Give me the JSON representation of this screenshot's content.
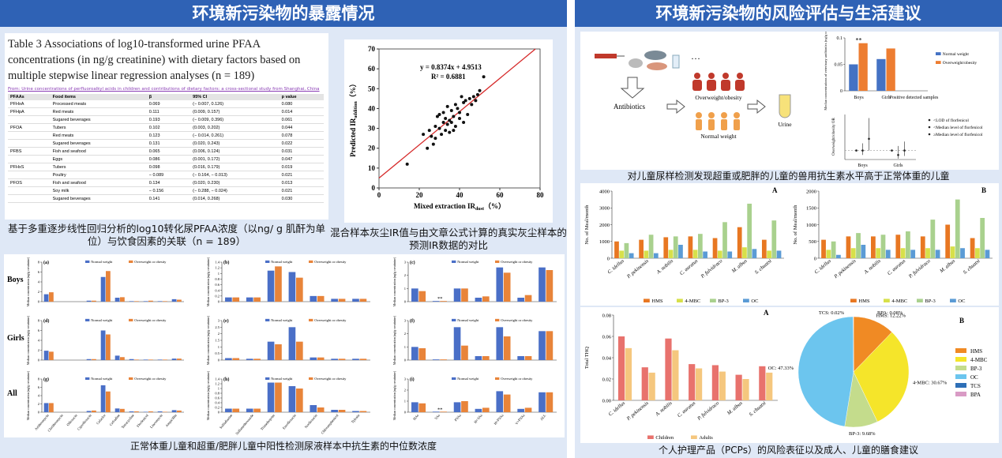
{
  "left_title": "环境新污染物的暴露情况",
  "right_title": "环境新污染物的风险评估与生活建议",
  "table": {
    "caption": "Table 3 Associations of log10-transformed urine PFAA concentrations (in ng/g creatinine) with dietary factors based on multiple stepwise linear regression analyses (n = 189)",
    "source": "From: Urine concentrations of perfluoroalkyl acids in children and contributions of dietary factors: a cross-sectional study from Shanghai, China",
    "header": [
      "PFAAs",
      "Food items",
      "β",
      "95% CI",
      "p value"
    ],
    "rows": [
      [
        "PFHxA",
        "Processed meats",
        "0.069",
        "(− 0.007, 0.126)",
        "0.080"
      ],
      [
        "PFHpA",
        "Red meats",
        "0.111",
        "(0.009, 0.157)",
        "0.014"
      ],
      [
        null,
        "Sugared beverages",
        "0.193",
        "(− 0.009, 0.396)",
        "0.061"
      ],
      [
        "PFOA",
        "Tubers",
        "0.102",
        "(0.003, 0.202)",
        "0.044"
      ],
      [
        null,
        "Red meats",
        "0.123",
        "(− 0.014, 0.261)",
        "0.078"
      ],
      [
        null,
        "Sugared beverages",
        "0.131",
        "(0.020, 0.243)",
        "0.022"
      ],
      [
        "PFBS",
        "Fish and seafood",
        "0.065",
        "(0.006, 0.124)",
        "0.031"
      ],
      [
        null,
        "Eggs",
        "0.086",
        "(0.001, 0.172)",
        "0.047"
      ],
      [
        "PFHxS",
        "Tubers",
        "0.098",
        "(0.016, 0.179)",
        "0.019"
      ],
      [
        null,
        "Poultry",
        "− 0.089",
        "(− 0.164, − 0.013)",
        "0.021"
      ],
      [
        "PFOS",
        "Fish and seafood",
        "0.134",
        "(0.020, 0.230)",
        "0.013"
      ],
      [
        null,
        "Soy milk",
        "− 0.156",
        "(− 0.288, − 0.024)",
        "0.021"
      ],
      [
        null,
        "Sugared beverages",
        "0.141",
        "(0.014, 0.268)",
        "0.030"
      ]
    ]
  },
  "table_caption": "基于多重逐步线性回归分析的log10转化尿PFAA浓度（以ng/ g 肌酐为单位）与饮食因素的关联（n = 189）",
  "scatter_caption": "混合样本灰尘IR值与由文章公式计算的真实灰尘样本的预测IR数据的对比",
  "grid_caption": "正常体重儿童和超重/肥胖儿童中阳性检测尿液样本中抗生素的中位数浓度",
  "diagram": {
    "antibiotics": "Antibiotics",
    "overweight": "Overweight/obesity",
    "normal": "Normal weight",
    "urine": "Urine",
    "more": "···"
  },
  "top_caption": "对儿童尿样检测发现超重或肥胖的儿童的兽用抗生素水平高于正常体重的儿童",
  "bottom_caption": "个人护理产品（PCPs）的风险表征以及成人、儿童的膳食建议",
  "chart_data": [
    {
      "type": "scatter",
      "equation": "y = 0.8374x + 4.9513",
      "r2": "R² = 0.6881",
      "slope": 0.8374,
      "intercept": 4.9513,
      "x_label": [
        "Mixed extraction IR",
        "dust",
        "（%）"
      ],
      "y_label": [
        "Predicted IR",
        "addition",
        "（%）"
      ],
      "color": "#111111",
      "line_color": "#d62a2a",
      "x": [
        14,
        22,
        24,
        25,
        26,
        27,
        28,
        28,
        29,
        30,
        30,
        31,
        32,
        32,
        33,
        33,
        34,
        34,
        35,
        35,
        36,
        36,
        37,
        37,
        38,
        38,
        39,
        40,
        40,
        41,
        42,
        42,
        43,
        44,
        45,
        46,
        47,
        48,
        49,
        50,
        52
      ],
      "y": [
        12,
        27,
        20,
        29,
        26,
        22,
        31,
        25,
        36,
        30,
        37,
        27,
        33,
        38,
        35,
        29,
        32,
        41,
        28,
        34,
        33,
        39,
        36,
        29,
        42,
        31,
        40,
        35,
        38,
        46,
        33,
        43,
        44,
        37,
        45,
        42,
        46,
        44,
        47,
        49,
        56
      ],
      "xlim": [
        0,
        80
      ],
      "xticks": [
        0,
        20,
        40,
        60,
        80
      ],
      "ylim": [
        0,
        70
      ],
      "yticks": [
        0,
        10,
        20,
        30,
        40,
        50,
        60,
        70
      ]
    },
    {
      "type": "bar",
      "label": "(a)",
      "row_label": "Boys",
      "y_label": "Median concentration (ng/g creatinine)",
      "ylim": [
        0,
        8
      ],
      "yticks": [
        0,
        2,
        4,
        6,
        8
      ],
      "series": [
        {
          "name": "Normal weight",
          "color": "#4a6fc7",
          "values": [
            1.5,
            0,
            0,
            0.2,
            5,
            0.8,
            0.1,
            0.1,
            0.1,
            0.5
          ]
        },
        {
          "name": "Overweight or obesity",
          "color": "#e8843a",
          "values": [
            1.9,
            0,
            0,
            0.2,
            6.2,
            0.9,
            0.1,
            0.2,
            0.1,
            0.4
          ]
        }
      ]
    },
    {
      "type": "bar",
      "label": "(b)",
      "y_label": "Median concentration (ng/g creatinine)",
      "ylim": [
        0,
        1.4
      ],
      "yticks": [
        0,
        0.2,
        0.4,
        0.6,
        0.8,
        1,
        1.2,
        1.4
      ],
      "series": [
        {
          "name": "Normal weight",
          "color": "#4a6fc7",
          "values": [
            0.15,
            0.15,
            1.1,
            1.05,
            0.2,
            0.1,
            0.1
          ]
        },
        {
          "name": "Overweight or obesity",
          "color": "#e8843a",
          "values": [
            0.15,
            0.15,
            1.25,
            0.85,
            0.2,
            0.1,
            0.1
          ]
        }
      ]
    },
    {
      "type": "bar",
      "label": "(c)",
      "y_label": "Median concentration (ng/g creatinine)",
      "ylim": [
        0,
        3
      ],
      "yticks": [
        0,
        1,
        2,
        3
      ],
      "annotation": "**",
      "series": [
        {
          "name": "Normal weight",
          "color": "#4a6fc7",
          "values": [
            1.0,
            0.05,
            1.0,
            0.3,
            2.6,
            0.3,
            2.6
          ]
        },
        {
          "name": "Overweight or obesity",
          "color": "#e8843a",
          "values": [
            0.8,
            0.05,
            1.0,
            0.4,
            2.2,
            0.5,
            2.4
          ]
        }
      ]
    },
    {
      "type": "bar",
      "label": "(d)",
      "row_label": "Girls",
      "y_label": "Median concentration (ng/g creatinine)",
      "ylim": [
        0,
        8
      ],
      "yticks": [
        0,
        2,
        4,
        6,
        8
      ],
      "series": [
        {
          "name": "Normal weight",
          "color": "#4a6fc7",
          "values": [
            1.9,
            0,
            0,
            0.2,
            6,
            0.9,
            0.2,
            0.1,
            0.1,
            0.3
          ]
        },
        {
          "name": "Overweight or obesity",
          "color": "#e8843a",
          "values": [
            1.7,
            0,
            0,
            0.2,
            5.2,
            0.6,
            0.1,
            0.1,
            0.1,
            0.3
          ]
        }
      ]
    },
    {
      "type": "bar",
      "label": "(e)",
      "y_label": "Median concentration (ng/g creatinine)",
      "ylim": [
        0,
        3
      ],
      "yticks": [
        0,
        0.5,
        1,
        1.5,
        2,
        2.5,
        3
      ],
      "series": [
        {
          "name": "Normal weight",
          "color": "#4a6fc7",
          "values": [
            0.15,
            0.1,
            1.4,
            2.5,
            0.2,
            0.1,
            0.1
          ]
        },
        {
          "name": "Overweight or obesity",
          "color": "#e8843a",
          "values": [
            0.15,
            0.1,
            1.2,
            1.4,
            0.2,
            0.1,
            0.1
          ]
        }
      ]
    },
    {
      "type": "bar",
      "label": "(f)",
      "y_label": "Median concentration (ng/g creatinine)",
      "ylim": [
        0,
        3
      ],
      "yticks": [
        0,
        1,
        2,
        3
      ],
      "series": [
        {
          "name": "Normal weight",
          "color": "#4a6fc7",
          "values": [
            1.0,
            0.05,
            2.5,
            0.3,
            2.5,
            0.3,
            2.2
          ]
        },
        {
          "name": "Overweight or obesity",
          "color": "#e8843a",
          "values": [
            0.9,
            0.05,
            1.1,
            0.3,
            1.8,
            0.3,
            2.2
          ]
        }
      ]
    },
    {
      "type": "bar",
      "label": "(g)",
      "row_label": "All",
      "y_label": "Median concentration (ng/g creatinine)",
      "ylim": [
        0,
        8
      ],
      "yticks": [
        0,
        2,
        4,
        6,
        8
      ],
      "categories": [
        "Azithromycin",
        "Clarithromycin",
        "Ofloxacin",
        "Ciprofloxacin",
        "Cefaclor",
        "Cefradine",
        "Tetracycline",
        "Florfenicol",
        "Lincomycin",
        "Ampicillin"
      ],
      "series": [
        {
          "name": "Normal weight",
          "color": "#4a6fc7",
          "values": [
            2.2,
            0,
            0,
            0.3,
            6.5,
            0.9,
            0.2,
            0.1,
            0.2,
            0.5
          ]
        },
        {
          "name": "Overweight or obesity",
          "color": "#e8843a",
          "values": [
            2.2,
            0,
            0,
            0.4,
            5,
            0.8,
            0.2,
            0.2,
            0.1,
            0.4
          ]
        }
      ]
    },
    {
      "type": "bar",
      "label": "(h)",
      "y_label": "Median concentration (ng/g creatinine)",
      "ylim": [
        0,
        1.4
      ],
      "yticks": [
        0,
        0.2,
        0.4,
        0.6,
        0.8,
        1,
        1.2,
        1.4
      ],
      "categories": [
        "Sulfadiazine",
        "Sulfamethoxazole",
        "Trimethoprim",
        "Enrofloxacin",
        "Norfloxacin",
        "Chloramphenicol",
        "Tylosin"
      ],
      "series": [
        {
          "name": "Normal weight",
          "color": "#4a6fc7",
          "values": [
            0.15,
            0.15,
            1.25,
            1.1,
            0.3,
            0.1,
            0.05
          ]
        },
        {
          "name": "Overweight or obesity",
          "color": "#e8843a",
          "values": [
            0.15,
            0.15,
            1.25,
            1.0,
            0.2,
            0.1,
            0.05
          ]
        }
      ]
    },
    {
      "type": "bar",
      "label": "(i)",
      "y_label": "Median concentration (ng/g creatinine)",
      "ylim": [
        0,
        3
      ],
      "yticks": [
        0,
        1,
        2,
        3
      ],
      "annotation": "**",
      "categories": [
        "HAs",
        "VAs",
        "PVAs",
        "H+VAs",
        "H+PVAs",
        "V+PVAs",
        "ALL"
      ],
      "series": [
        {
          "name": "Normal weight",
          "color": "#4a6fc7",
          "values": [
            0.9,
            0.05,
            0.9,
            0.3,
            1.9,
            0.3,
            1.8
          ]
        },
        {
          "name": "Overweight or obesity",
          "color": "#e8843a",
          "values": [
            0.8,
            0.05,
            1.0,
            0.4,
            1.6,
            0.4,
            1.8
          ]
        }
      ]
    },
    {
      "type": "bar",
      "y_label": "Median concentrations of veterinary antibiotics (ng/g creatinine)",
      "annotation": "**",
      "ylim": [
        0,
        0.1
      ],
      "yticks": [
        0,
        0.05,
        0.1
      ],
      "categories": [
        "Boys",
        "Girls",
        "Positive detected samples"
      ],
      "series": [
        {
          "name": "Normal weight",
          "color": "#4472c4",
          "values": [
            0.05,
            0.06,
            null
          ]
        },
        {
          "name": "Overweight/obesity",
          "color": "#ed7d31",
          "values": [
            0.09,
            0.08,
            null
          ]
        }
      ]
    },
    {
      "type": "errorbar",
      "y_label": "Overweight/obesity OR",
      "ylim": [
        0,
        5
      ],
      "reference": 1,
      "categories": [
        "Boys",
        "Girls"
      ],
      "series": [
        {
          "name": "<LOD of florfenicol",
          "color": "#222222",
          "values": [
            1,
            1
          ],
          "lower": [
            null,
            null
          ],
          "upper": [
            null,
            null
          ]
        },
        {
          "name": "<Median level of florfenicol",
          "color": "#222222",
          "values": [
            1,
            0.5
          ],
          "lower": [
            0.5,
            0.1
          ],
          "upper": [
            1.8,
            1.5
          ]
        },
        {
          "name": "≥Median level of florfenicol",
          "color": "#222222",
          "values": [
            2.3,
            1.0
          ],
          "lower": [
            1.0,
            0.4
          ],
          "upper": [
            4.6,
            2.0
          ]
        }
      ]
    },
    {
      "type": "bar",
      "label": "A",
      "y_label": "No. of Meal/month",
      "ylim": [
        0,
        4000
      ],
      "yticks": [
        0,
        1000,
        2000,
        3000,
        4000
      ],
      "categories": [
        "C. idellus",
        "P. pekinensis",
        "A. nobilis",
        "C. auratus",
        "P. fulvidraco",
        "M. albus",
        "S. chuatsi"
      ],
      "series": [
        {
          "name": "HMS",
          "color": "#e87722",
          "values": [
            1000,
            1100,
            1250,
            1300,
            1200,
            1850,
            1100
          ]
        },
        {
          "name": "4-MBC",
          "color": "#d7e04a",
          "values": [
            450,
            450,
            500,
            500,
            450,
            650,
            450
          ]
        },
        {
          "name": "BP-3",
          "color": "#a9d18e",
          "values": [
            900,
            1400,
            1300,
            1450,
            2150,
            3250,
            2250
          ]
        },
        {
          "name": "OC",
          "color": "#5b9bd5",
          "values": [
            300,
            300,
            800,
            400,
            400,
            550,
            450
          ]
        }
      ]
    },
    {
      "type": "bar",
      "label": "B",
      "y_label": "No. of Meal/month",
      "ylim": [
        0,
        2000
      ],
      "yticks": [
        0,
        500,
        1000,
        1500,
        2000
      ],
      "categories": [
        "C. idellus",
        "P. pekinensis",
        "A. nobilis",
        "C. auratus",
        "P. fulvidraco",
        "M. albus",
        "S. chuatsi"
      ],
      "series": [
        {
          "name": "HMS",
          "color": "#e87722",
          "values": [
            550,
            650,
            650,
            700,
            650,
            1000,
            600
          ]
        },
        {
          "name": "4-MBC",
          "color": "#d7e04a",
          "values": [
            250,
            300,
            300,
            300,
            300,
            350,
            300
          ]
        },
        {
          "name": "BP-3",
          "color": "#a9d18e",
          "values": [
            500,
            750,
            700,
            800,
            1150,
            1750,
            1200
          ]
        },
        {
          "name": "OC",
          "color": "#5b9bd5",
          "values": [
            100,
            400,
            250,
            250,
            250,
            300,
            250
          ]
        }
      ]
    },
    {
      "type": "bar",
      "label": "A",
      "y_label": "Total THQ",
      "ylim": [
        0,
        0.08
      ],
      "yticks": [
        {
          "value": 0,
          "label": "0.00"
        },
        {
          "value": 0.02,
          "label": "0.02"
        },
        {
          "value": 0.04,
          "label": "0.04"
        },
        {
          "value": 0.06,
          "label": "0.06"
        },
        {
          "value": 0.08,
          "label": "0.08"
        }
      ],
      "categories": [
        "C. idellus",
        "P. pekinensis",
        "A. nobilis",
        "C. auratus",
        "P. fulvidraco",
        "M. albus",
        "S. chuatsi"
      ],
      "series": [
        {
          "name": "Children",
          "color": "#e8726d",
          "values": [
            0.06,
            0.031,
            0.058,
            0.034,
            0.033,
            0.024,
            0.032
          ]
        },
        {
          "name": "Adults",
          "color": "#f5c77e",
          "values": [
            0.049,
            0.026,
            0.047,
            0.03,
            0.027,
            0.02,
            0.026
          ]
        }
      ]
    },
    {
      "type": "pie",
      "label": "B",
      "categories": [
        "HMS",
        "4-MBC",
        "BP-3",
        "OC",
        "TCS",
        "BPA"
      ],
      "values": [
        12.22,
        30.67,
        9.68,
        47.33,
        0.02,
        0.08
      ],
      "value_labels": [
        "HMS: 12.22%",
        "4-MBC: 30.67%",
        "BP-3: 9.68%",
        "OC: 47.33%",
        "TCS: 0.02%",
        "BPA: 0.08%"
      ],
      "colors": [
        "#f08a24",
        "#f5e52a",
        "#c4dc8c",
        "#6cc5ee",
        "#2e6fb7",
        "#d99bc5"
      ]
    }
  ]
}
